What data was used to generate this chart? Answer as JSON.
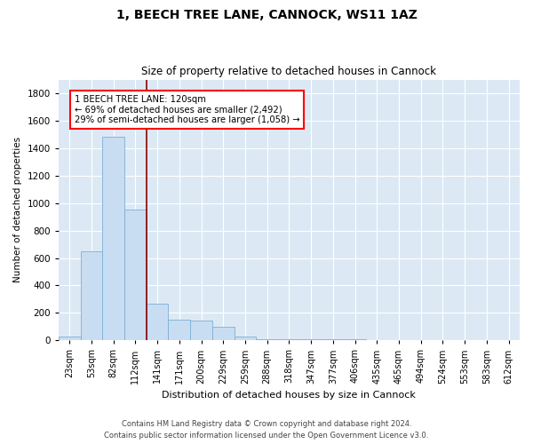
{
  "title1": "1, BEECH TREE LANE, CANNOCK, WS11 1AZ",
  "title2": "Size of property relative to detached houses in Cannock",
  "xlabel": "Distribution of detached houses by size in Cannock",
  "ylabel": "Number of detached properties",
  "categories": [
    "23sqm",
    "53sqm",
    "82sqm",
    "112sqm",
    "141sqm",
    "171sqm",
    "200sqm",
    "229sqm",
    "259sqm",
    "288sqm",
    "318sqm",
    "347sqm",
    "377sqm",
    "406sqm",
    "435sqm",
    "465sqm",
    "494sqm",
    "524sqm",
    "553sqm",
    "583sqm",
    "612sqm"
  ],
  "values": [
    30,
    650,
    1480,
    950,
    270,
    150,
    145,
    100,
    30,
    10,
    5,
    5,
    5,
    10,
    0,
    0,
    0,
    0,
    0,
    0,
    0
  ],
  "bar_color": "#c9ddf2",
  "bar_edge_color": "#7bafd4",
  "annotation_text": "1 BEECH TREE LANE: 120sqm\n← 69% of detached houses are smaller (2,492)\n29% of semi-detached houses are larger (1,058) →",
  "ylim": [
    0,
    1900
  ],
  "yticks": [
    0,
    200,
    400,
    600,
    800,
    1000,
    1200,
    1400,
    1600,
    1800
  ],
  "plot_bg_color": "#dce9f5",
  "footer1": "Contains HM Land Registry data © Crown copyright and database right 2024.",
  "footer2": "Contains public sector information licensed under the Open Government Licence v3.0."
}
